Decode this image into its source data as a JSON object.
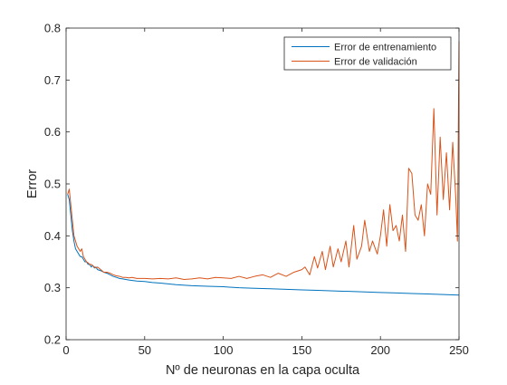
{
  "chart_data": {
    "type": "line",
    "xlabel": "Nº de neuronas en la capa oculta",
    "ylabel": "Error",
    "xlim": [
      0,
      250
    ],
    "ylim": [
      0.2,
      0.8
    ],
    "xticks": [
      "0",
      "50",
      "100",
      "150",
      "200",
      "250"
    ],
    "yticks": [
      "0.2",
      "0.3",
      "0.4",
      "0.5",
      "0.6",
      "0.7",
      "0.8"
    ],
    "grid": false,
    "legend_position": "top-right",
    "series": [
      {
        "name": "Error de entrenamiento",
        "color": "#0072BD",
        "x": [
          1,
          2,
          3,
          4,
          5,
          6,
          7,
          8,
          9,
          10,
          11,
          12,
          13,
          14,
          15,
          16,
          17,
          18,
          19,
          20,
          22,
          24,
          26,
          28,
          30,
          32,
          34,
          36,
          38,
          40,
          45,
          50,
          55,
          60,
          70,
          80,
          90,
          100,
          110,
          120,
          130,
          140,
          150,
          160,
          170,
          180,
          190,
          200,
          210,
          220,
          230,
          240,
          250
        ],
        "y": [
          0.48,
          0.47,
          0.44,
          0.41,
          0.39,
          0.375,
          0.37,
          0.365,
          0.36,
          0.36,
          0.355,
          0.35,
          0.35,
          0.345,
          0.345,
          0.34,
          0.343,
          0.338,
          0.34,
          0.335,
          0.333,
          0.33,
          0.328,
          0.325,
          0.322,
          0.32,
          0.318,
          0.317,
          0.316,
          0.315,
          0.313,
          0.312,
          0.31,
          0.309,
          0.306,
          0.304,
          0.303,
          0.302,
          0.3,
          0.299,
          0.298,
          0.297,
          0.296,
          0.295,
          0.294,
          0.293,
          0.292,
          0.291,
          0.29,
          0.289,
          0.288,
          0.287,
          0.286
        ]
      },
      {
        "name": "Error de validación",
        "color": "#D95319",
        "x": [
          1,
          2,
          3,
          4,
          5,
          6,
          7,
          8,
          9,
          10,
          11,
          12,
          13,
          14,
          15,
          16,
          17,
          18,
          19,
          20,
          22,
          24,
          26,
          28,
          30,
          32,
          34,
          36,
          38,
          40,
          42,
          45,
          50,
          55,
          60,
          65,
          70,
          75,
          80,
          85,
          90,
          95,
          100,
          105,
          110,
          115,
          120,
          125,
          130,
          135,
          140,
          145,
          150,
          152,
          155,
          158,
          160,
          163,
          165,
          168,
          170,
          173,
          175,
          178,
          180,
          183,
          185,
          188,
          190,
          193,
          195,
          198,
          200,
          202,
          204,
          206,
          208,
          210,
          212,
          214,
          216,
          218,
          220,
          222,
          224,
          226,
          228,
          230,
          232,
          234,
          236,
          238,
          240,
          242,
          244,
          246,
          248,
          249,
          250
        ],
        "y": [
          0.48,
          0.49,
          0.46,
          0.43,
          0.4,
          0.39,
          0.38,
          0.375,
          0.37,
          0.375,
          0.36,
          0.355,
          0.35,
          0.348,
          0.345,
          0.345,
          0.342,
          0.34,
          0.338,
          0.34,
          0.335,
          0.33,
          0.33,
          0.328,
          0.325,
          0.323,
          0.322,
          0.32,
          0.32,
          0.319,
          0.32,
          0.318,
          0.318,
          0.317,
          0.318,
          0.317,
          0.319,
          0.316,
          0.317,
          0.319,
          0.317,
          0.32,
          0.319,
          0.318,
          0.322,
          0.318,
          0.322,
          0.325,
          0.32,
          0.328,
          0.322,
          0.33,
          0.335,
          0.34,
          0.325,
          0.36,
          0.338,
          0.37,
          0.335,
          0.38,
          0.34,
          0.375,
          0.35,
          0.39,
          0.34,
          0.42,
          0.355,
          0.38,
          0.43,
          0.37,
          0.39,
          0.365,
          0.4,
          0.45,
          0.38,
          0.46,
          0.41,
          0.42,
          0.39,
          0.44,
          0.37,
          0.53,
          0.52,
          0.44,
          0.43,
          0.46,
          0.4,
          0.5,
          0.48,
          0.645,
          0.44,
          0.59,
          0.47,
          0.56,
          0.45,
          0.58,
          0.47,
          0.39,
          0.775
        ]
      }
    ]
  }
}
